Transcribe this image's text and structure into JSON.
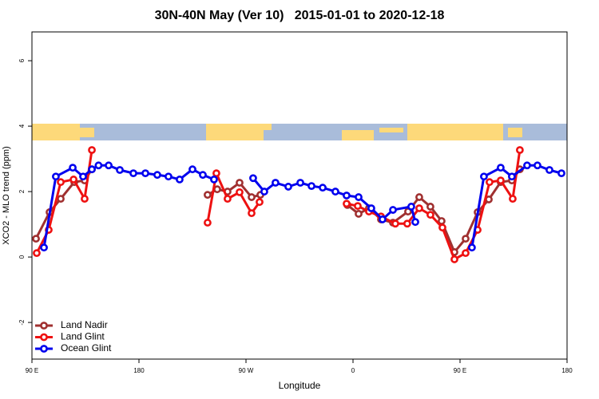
{
  "chart_data": {
    "type": "line",
    "title": "30N-40N May (Ver 10)   2015-01-01 to 2020-12-18",
    "x_label": "Longitude",
    "y_label": "XCO2 - MLO trend (ppm)",
    "xlim": [
      90,
      540
    ],
    "ylim": [
      -3.12,
      6.88
    ],
    "xticks": [
      {
        "value": 90,
        "label": "90 E"
      },
      180,
      {
        "value": 270,
        "label": "90 W"
      },
      {
        "value": 360,
        "label": "0"
      },
      {
        "value": 450,
        "label": "90 E"
      },
      {
        "value": 540,
        "label": "180"
      }
    ],
    "yticks": [
      -2,
      0,
      2,
      4,
      6
    ],
    "legend": "lower left",
    "series": [
      {
        "name": "Land Nadir",
        "color": "#a03030",
        "x": [
          93.4,
          104.8,
          114.2,
          125.6,
          134.3,
          140.4,
          null,
          237.7,
          245.8,
          254.5,
          264.6,
          274.7,
          282.1,
          null,
          355.3,
          364.7,
          373.4,
          383.5,
          393.6,
          406.3,
          415.7,
          425.1,
          434.5,
          445.3,
          454.7,
          464.8,
          474.2,
          484.2,
          493.6,
          500.3
        ],
        "values": [
          0.56,
          1.37,
          1.78,
          2.29,
          2.34,
          2.68,
          null,
          1.9,
          2.07,
          2.0,
          2.27,
          1.83,
          1.9,
          null,
          1.59,
          1.32,
          1.49,
          1.15,
          1.05,
          1.39,
          1.83,
          1.54,
          1.1,
          0.15,
          0.56,
          1.37,
          1.76,
          2.29,
          2.34,
          2.68
        ]
      },
      {
        "name": "Land Glint",
        "color": "#ee1111",
        "x": [
          94.0,
          104.1,
          114.2,
          125.0,
          134.3,
          140.4,
          null,
          237.7,
          245.1,
          254.5,
          264.6,
          274.7,
          281.4,
          null,
          354.6,
          364.0,
          373.4,
          383.5,
          395.6,
          405.6,
          415.7,
          425.1,
          435.2,
          445.3,
          454.7,
          464.8,
          474.8,
          484.2,
          494.3,
          500.3
        ],
        "values": [
          0.12,
          0.83,
          2.29,
          2.37,
          1.78,
          3.27,
          null,
          1.05,
          2.56,
          1.78,
          1.98,
          1.34,
          1.68,
          null,
          1.63,
          1.56,
          1.39,
          1.24,
          1.02,
          1.02,
          1.49,
          1.29,
          0.9,
          -0.07,
          0.12,
          0.83,
          2.29,
          2.34,
          1.78,
          3.27
        ]
      },
      {
        "name": "Ocean Glint",
        "color": "#0000ee",
        "x": [
          100.1,
          110.1,
          124.3,
          133.0,
          140.4,
          146.0,
          154.5,
          163.9,
          175.3,
          185.4,
          195.4,
          204.8,
          214.2,
          225.0,
          233.7,
          243.1,
          null,
          276.0,
          285.4,
          294.8,
          305.6,
          315.7,
          325.1,
          334.5,
          345.2,
          354.6,
          364.7,
          375.4,
          384.8,
          393.6,
          409.0,
          412.4,
          null,
          460.0,
          470.1,
          484.2,
          493.6,
          506.4,
          515.1,
          525.2,
          535.3
        ],
        "values": [
          0.29,
          2.46,
          2.73,
          2.46,
          2.68,
          2.8,
          2.8,
          2.66,
          2.56,
          2.56,
          2.51,
          2.46,
          2.37,
          2.68,
          2.51,
          2.37,
          null,
          2.41,
          2.0,
          2.27,
          2.15,
          2.27,
          2.17,
          2.12,
          2.0,
          1.88,
          1.83,
          1.49,
          1.15,
          1.44,
          1.54,
          1.07,
          null,
          0.29,
          2.46,
          2.73,
          2.46,
          2.8,
          2.8,
          2.66,
          2.56
        ]
      }
    ]
  }
}
